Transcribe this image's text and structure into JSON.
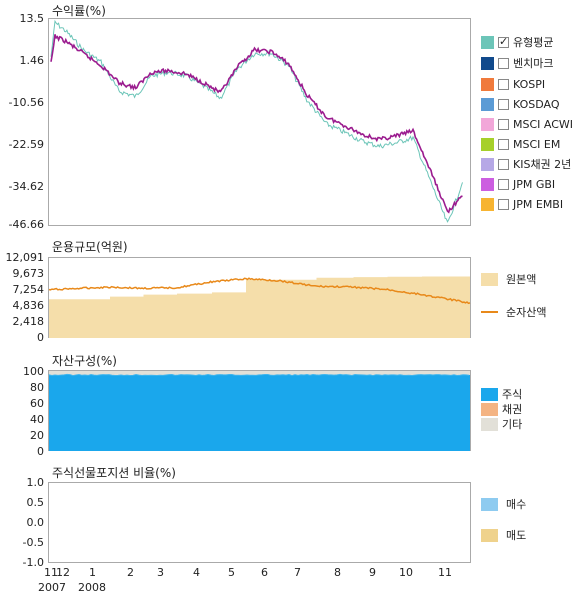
{
  "returns_panel": {
    "title": "수익률(%)",
    "y_ticks": [
      "13.5",
      "1.46",
      "-10.56",
      "-22.59",
      "-34.62",
      "-46.66"
    ],
    "legend": [
      {
        "label": "유형평균",
        "color": "#6cc5b8",
        "checked": true
      },
      {
        "label": "벤치마크",
        "color": "#114a8c",
        "checked": false
      },
      {
        "label": "KOSPI",
        "color": "#f07a3c",
        "checked": false
      },
      {
        "label": "KOSDAQ",
        "color": "#5b9bd5",
        "checked": false
      },
      {
        "label": "MSCI ACWI",
        "color": "#f2a7d9",
        "checked": false
      },
      {
        "label": "MSCI EM",
        "color": "#a6d02a",
        "checked": false
      },
      {
        "label": "KIS채권 2년",
        "color": "#b6a8e6",
        "checked": false
      },
      {
        "label": "JPM GBI",
        "color": "#cc5ee0",
        "checked": false
      },
      {
        "label": "JPM EMBI",
        "color": "#f7b431",
        "checked": false
      }
    ]
  },
  "aum_panel": {
    "title": "운용규모(억원)",
    "y_ticks": [
      "12,091",
      "9,673",
      "7,254",
      "4,836",
      "2,418",
      "0"
    ],
    "legend": [
      {
        "label": "원본액",
        "color": "#f5deaa"
      },
      {
        "label": "순자산액",
        "color": "#e8891a"
      }
    ]
  },
  "composition_panel": {
    "title": "자산구성(%)",
    "y_ticks": [
      "100",
      "80",
      "60",
      "40",
      "20",
      "0"
    ],
    "legend": [
      {
        "label": "주식",
        "color": "#1aa7ec"
      },
      {
        "label": "채권",
        "color": "#f4b483"
      },
      {
        "label": "기타",
        "color": "#e2e0d8"
      }
    ]
  },
  "futures_panel": {
    "title": "주식선물포지션 비율(%)",
    "y_ticks": [
      "1.0",
      "0.5",
      "0.0",
      "-0.5",
      "-1.0"
    ],
    "legend": [
      {
        "label": "매수",
        "color": "#8ecbf0"
      },
      {
        "label": "매도",
        "color": "#efd28c"
      }
    ]
  },
  "x_axis": {
    "month_ticks": [
      "11",
      "12",
      "1",
      "2",
      "3",
      "4",
      "5",
      "6",
      "7",
      "8",
      "9",
      "10",
      "11"
    ],
    "year_ticks": [
      "2007",
      "2008"
    ]
  },
  "chart_data": [
    {
      "type": "line",
      "title": "수익률(%)",
      "x_unit": "month",
      "ylim": [
        -46.66,
        13.5
      ],
      "series": [
        {
          "name": "유형평균",
          "color": "#6cc5b8",
          "x": [
            "2007-11",
            "2007-11",
            "2007-12",
            "2007-12",
            "2008-01",
            "2008-01",
            "2008-02",
            "2008-02",
            "2008-03",
            "2008-03",
            "2008-04",
            "2008-04",
            "2008-05",
            "2008-05",
            "2008-06",
            "2008-06",
            "2008-07",
            "2008-07",
            "2008-08",
            "2008-08",
            "2008-09",
            "2008-09",
            "2008-10",
            "2008-10",
            "2008-11",
            "2008-11"
          ],
          "values": [
            2.5,
            12.5,
            10.0,
            4.5,
            1.0,
            -7.5,
            -9.0,
            -3.0,
            -2.0,
            -3.0,
            -6.0,
            -9.5,
            -1.0,
            3.5,
            3.5,
            0.0,
            -10.0,
            -17.0,
            -19.5,
            -22.0,
            -23.5,
            -22.5,
            -21.0,
            -34.0,
            -46.0,
            -34.0
          ]
        },
        {
          "name": "",
          "color": "#9b1c8f",
          "x": [
            "2007-11",
            "2007-11",
            "2007-12",
            "2007-12",
            "2008-01",
            "2008-01",
            "2008-02",
            "2008-02",
            "2008-03",
            "2008-03",
            "2008-04",
            "2008-04",
            "2008-05",
            "2008-05",
            "2008-06",
            "2008-06",
            "2008-07",
            "2008-07",
            "2008-08",
            "2008-08",
            "2008-09",
            "2008-09",
            "2008-10",
            "2008-10",
            "2008-11",
            "2008-11"
          ],
          "values": [
            0.5,
            8.5,
            7.0,
            3.5,
            0.0,
            -5.0,
            -6.5,
            -2.0,
            -1.5,
            -2.5,
            -5.0,
            -8.0,
            -0.5,
            4.5,
            4.0,
            0.5,
            -8.5,
            -15.0,
            -17.5,
            -20.0,
            -21.5,
            -20.5,
            -19.0,
            -31.0,
            -42.5,
            -38.0
          ]
        }
      ]
    },
    {
      "type": "area",
      "title": "운용규모(억원)",
      "ylim": [
        0,
        12091
      ],
      "series": [
        {
          "name": "원본액",
          "color": "#f5deaa",
          "x": [
            "2007-11",
            "2008-01",
            "2008-02",
            "2008-03",
            "2008-04",
            "2008-05",
            "2008-06",
            "2008-07",
            "2008-08",
            "2008-09",
            "2008-10",
            "2008-11"
          ],
          "values": [
            5850,
            6250,
            6550,
            6700,
            6900,
            8800,
            8800,
            9100,
            9200,
            9250,
            9300,
            9300
          ]
        },
        {
          "name": "순자산액",
          "color": "#e8891a",
          "x": [
            "2007-11",
            "2008-01",
            "2008-02",
            "2008-03",
            "2008-04",
            "2008-05",
            "2008-06",
            "2008-07",
            "2008-08",
            "2008-09",
            "2008-10",
            "2008-11"
          ],
          "values": [
            7300,
            7700,
            7500,
            7600,
            8500,
            8950,
            8650,
            7800,
            7700,
            7300,
            6550,
            5300
          ]
        }
      ]
    },
    {
      "type": "area",
      "title": "자산구성(%)",
      "ylim": [
        0,
        100
      ],
      "series": [
        {
          "name": "주식",
          "color": "#1aa7ec",
          "values": [
            95,
            95
          ]
        },
        {
          "name": "채권",
          "color": "#f4b483",
          "values": [
            0,
            0
          ]
        },
        {
          "name": "기타",
          "color": "#e2e0d8",
          "values": [
            5,
            5
          ]
        }
      ]
    },
    {
      "type": "area",
      "title": "주식선물포지션 비율(%)",
      "ylim": [
        -1.0,
        1.0
      ],
      "series": [
        {
          "name": "매수",
          "color": "#8ecbf0",
          "values": []
        },
        {
          "name": "매도",
          "color": "#efd28c",
          "values": []
        }
      ]
    }
  ]
}
